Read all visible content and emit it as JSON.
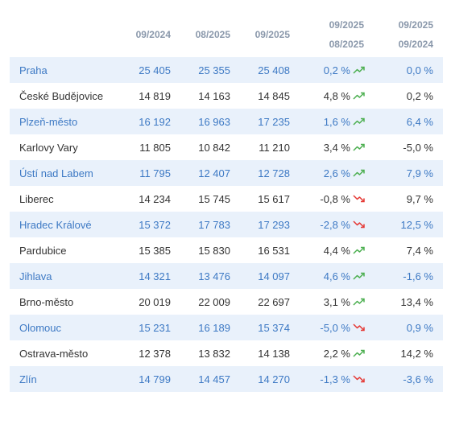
{
  "header": {
    "col1": "09/2024",
    "col2": "08/2025",
    "col3": "09/2025",
    "col4_top": "09/2025",
    "col4_bottom": "08/2025",
    "col5_top": "09/2025",
    "col5_bottom": "09/2024"
  },
  "colors": {
    "up_arrow": "#4caf50",
    "down_arrow": "#e53935",
    "alt_row_bg": "#e9f1fb",
    "alt_row_text": "#3d79c4"
  },
  "rows": [
    {
      "name": "Praha",
      "v1": "25 405",
      "v2": "25 355",
      "v3": "25 408",
      "mom": "0,2 %",
      "trend": "up",
      "yoy": "0,0 %"
    },
    {
      "name": "České Budějovice",
      "v1": "14 819",
      "v2": "14 163",
      "v3": "14 845",
      "mom": "4,8 %",
      "trend": "up",
      "yoy": "0,2 %"
    },
    {
      "name": "Plzeň-město",
      "v1": "16 192",
      "v2": "16 963",
      "v3": "17 235",
      "mom": "1,6 %",
      "trend": "up",
      "yoy": "6,4 %"
    },
    {
      "name": "Karlovy Vary",
      "v1": "11 805",
      "v2": "10 842",
      "v3": "11 210",
      "mom": "3,4 %",
      "trend": "up",
      "yoy": "-5,0 %"
    },
    {
      "name": "Ústí nad Labem",
      "v1": "11 795",
      "v2": "12 407",
      "v3": "12 728",
      "mom": "2,6 %",
      "trend": "up",
      "yoy": "7,9 %"
    },
    {
      "name": "Liberec",
      "v1": "14 234",
      "v2": "15 745",
      "v3": "15 617",
      "mom": "-0,8 %",
      "trend": "down",
      "yoy": "9,7 %"
    },
    {
      "name": "Hradec Králové",
      "v1": "15 372",
      "v2": "17 783",
      "v3": "17 293",
      "mom": "-2,8 %",
      "trend": "down",
      "yoy": "12,5 %"
    },
    {
      "name": "Pardubice",
      "v1": "15 385",
      "v2": "15 830",
      "v3": "16 531",
      "mom": "4,4 %",
      "trend": "up",
      "yoy": "7,4 %"
    },
    {
      "name": "Jihlava",
      "v1": "14 321",
      "v2": "13 476",
      "v3": "14 097",
      "mom": "4,6 %",
      "trend": "up",
      "yoy": "-1,6 %"
    },
    {
      "name": "Brno-město",
      "v1": "20 019",
      "v2": "22 009",
      "v3": "22 697",
      "mom": "3,1 %",
      "trend": "up",
      "yoy": "13,4 %"
    },
    {
      "name": "Olomouc",
      "v1": "15 231",
      "v2": "16 189",
      "v3": "15 374",
      "mom": "-5,0 %",
      "trend": "down",
      "yoy": "0,9 %"
    },
    {
      "name": "Ostrava-město",
      "v1": "12 378",
      "v2": "13 832",
      "v3": "14 138",
      "mom": "2,2 %",
      "trend": "up",
      "yoy": "14,2 %"
    },
    {
      "name": "Zlín",
      "v1": "14 799",
      "v2": "14 457",
      "v3": "14 270",
      "mom": "-1,3 %",
      "trend": "down",
      "yoy": "-3,6 %"
    }
  ]
}
